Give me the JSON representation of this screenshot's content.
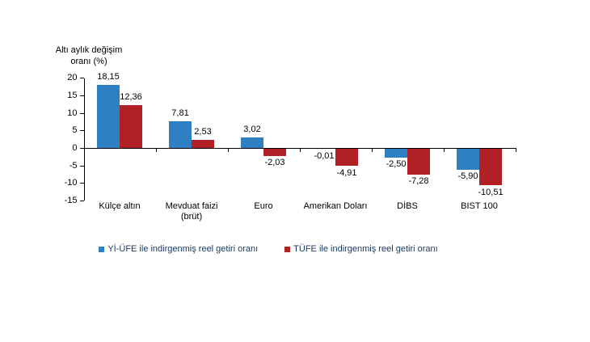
{
  "chart_data": {
    "type": "bar",
    "title": "",
    "ylabel": "Altı aylık değişim\noranı (%)",
    "xlabel": "",
    "categories": [
      "Külçe altın",
      "Mevduat faizi\n(brüt)",
      "Euro",
      "Amerikan Doları",
      "DİBS",
      "BIST 100"
    ],
    "series": [
      {
        "name": "Yİ-ÜFE ile indirgenmiş reel getiri oranı",
        "color": "#2E80C3",
        "values": [
          18.15,
          7.81,
          3.02,
          -0.01,
          -2.5,
          -5.9
        ],
        "labels": [
          "18,15",
          "7,81",
          "3,02",
          "-0,01",
          "-2,50",
          "-5,90"
        ]
      },
      {
        "name": "TÜFE ile indirgenmiş reel getiri oranı",
        "color": "#B02025",
        "values": [
          12.36,
          2.53,
          -2.03,
          -4.91,
          -7.28,
          -10.51
        ],
        "labels": [
          "12,36",
          "2,53",
          "-2,03",
          "-4,91",
          "-7,28",
          "-10,51"
        ]
      }
    ],
    "y_ticks": [
      20,
      15,
      10,
      5,
      0,
      -5,
      -10,
      -15
    ],
    "ylim": [
      -15,
      20
    ],
    "grid": false,
    "legend_position": "bottom",
    "colors": {
      "axis": "#000000",
      "text": "#000000",
      "legend_text": "#17375E",
      "background": "#FFFFFF"
    }
  }
}
